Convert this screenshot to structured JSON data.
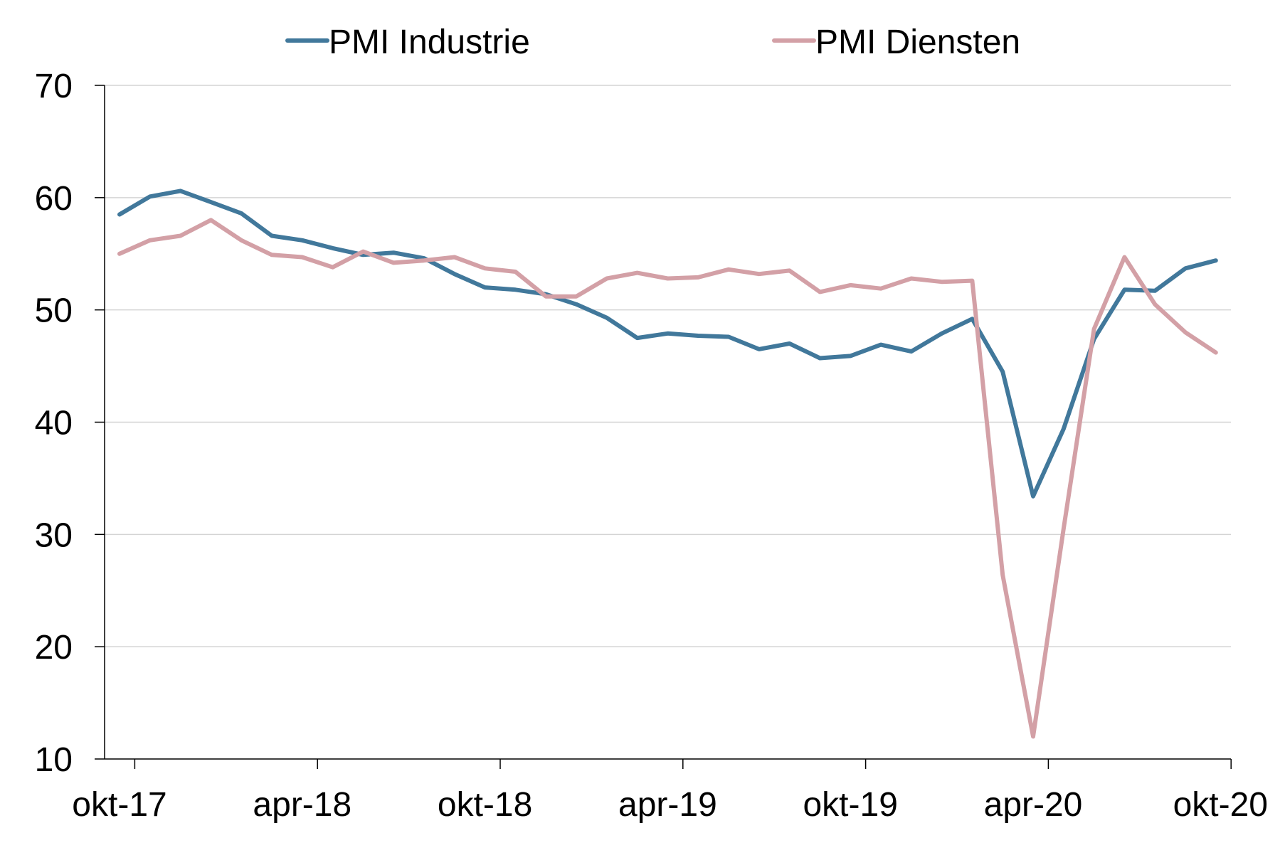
{
  "chart_data": {
    "type": "line",
    "title": "",
    "xlabel": "",
    "ylabel": "",
    "ylim": [
      10,
      70
    ],
    "yticks": [
      10,
      20,
      30,
      40,
      50,
      60,
      70
    ],
    "xtick_labels": [
      "okt-17",
      "apr-18",
      "okt-18",
      "apr-19",
      "okt-19",
      "apr-20",
      "okt-20"
    ],
    "grid": "horizontal",
    "legend": {
      "position": "top-center"
    },
    "x": [
      "okt-17",
      "nov-17",
      "dec-17",
      "jan-18",
      "feb-18",
      "mrt-18",
      "apr-18",
      "mei-18",
      "jun-18",
      "jul-18",
      "aug-18",
      "sep-18",
      "okt-18",
      "nov-18",
      "dec-18",
      "jan-19",
      "feb-19",
      "mrt-19",
      "apr-19",
      "mei-19",
      "jun-19",
      "jul-19",
      "aug-19",
      "sep-19",
      "okt-19",
      "nov-19",
      "dec-19",
      "jan-20",
      "feb-20",
      "mrt-20",
      "apr-20",
      "mei-20",
      "jun-20",
      "jul-20",
      "aug-20",
      "sep-20",
      "okt-20"
    ],
    "series": [
      {
        "name": "PMI Industrie",
        "color": "#41789b",
        "values": [
          58.5,
          60.1,
          60.6,
          59.6,
          58.6,
          56.6,
          56.2,
          55.5,
          54.9,
          55.1,
          54.6,
          53.2,
          52.0,
          51.8,
          51.4,
          50.5,
          49.3,
          47.5,
          47.9,
          47.7,
          47.6,
          46.5,
          47.0,
          45.7,
          45.9,
          46.9,
          46.3,
          47.9,
          49.2,
          44.5,
          33.4,
          39.4,
          47.4,
          51.8,
          51.7,
          53.7,
          54.4
        ]
      },
      {
        "name": "PMI Diensten",
        "color": "#d3a0a6",
        "values": [
          55.0,
          56.2,
          56.6,
          58.0,
          56.2,
          54.9,
          54.7,
          53.8,
          55.2,
          54.2,
          54.4,
          54.7,
          53.7,
          53.4,
          51.2,
          51.2,
          52.8,
          53.3,
          52.8,
          52.9,
          53.6,
          53.2,
          53.5,
          51.6,
          52.2,
          51.9,
          52.8,
          52.5,
          52.6,
          26.4,
          12.0,
          30.5,
          48.3,
          54.7,
          50.5,
          48.0,
          46.2
        ]
      }
    ]
  }
}
